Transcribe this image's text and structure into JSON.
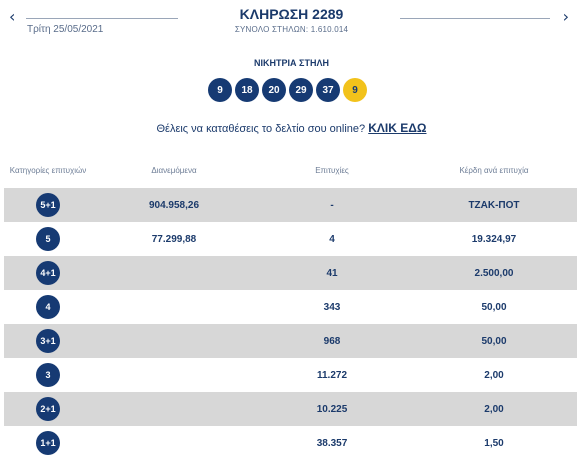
{
  "header": {
    "title": "ΚΛΗΡΩΣΗ 2289",
    "date": "Τρίτη 25/05/2021",
    "total_columns": "ΣΥΝΟΛΟ ΣΤΗΛΩΝ: 1.610.014",
    "prev_icon": "chevron-left-icon",
    "next_icon": "chevron-right-icon"
  },
  "winning": {
    "label": "ΝΙΚΗΤΡΙΑ ΣΤΗΛΗ",
    "numbers": [
      "9",
      "18",
      "20",
      "29",
      "37"
    ],
    "joker": "9",
    "colors": {
      "ball": "#163a73",
      "joker": "#f2c21b"
    }
  },
  "online": {
    "prompt": "Θέλεις να καταθέσεις το δελτίο σου online?",
    "link": "ΚΛΙΚ ΕΔΩ"
  },
  "table": {
    "headers": {
      "category": "Κατηγορίες επιτυχιών",
      "distributed": "Διανεμόμενα",
      "winners": "Επιτυχίες",
      "prize": "Κέρδη ανά επιτυχία"
    },
    "rows": [
      {
        "category": "5+1",
        "distributed": "904.958,26",
        "winners": "-",
        "prize": "ΤΖΑΚ-ΠΟΤ"
      },
      {
        "category": "5",
        "distributed": "77.299,88",
        "winners": "4",
        "prize": "19.324,97"
      },
      {
        "category": "4+1",
        "distributed": "",
        "winners": "41",
        "prize": "2.500,00"
      },
      {
        "category": "4",
        "distributed": "",
        "winners": "343",
        "prize": "50,00"
      },
      {
        "category": "3+1",
        "distributed": "",
        "winners": "968",
        "prize": "50,00"
      },
      {
        "category": "3",
        "distributed": "",
        "winners": "11.272",
        "prize": "2,00"
      },
      {
        "category": "2+1",
        "distributed": "",
        "winners": "10.225",
        "prize": "2,00"
      },
      {
        "category": "1+1",
        "distributed": "",
        "winners": "38.357",
        "prize": "1,50"
      }
    ]
  }
}
